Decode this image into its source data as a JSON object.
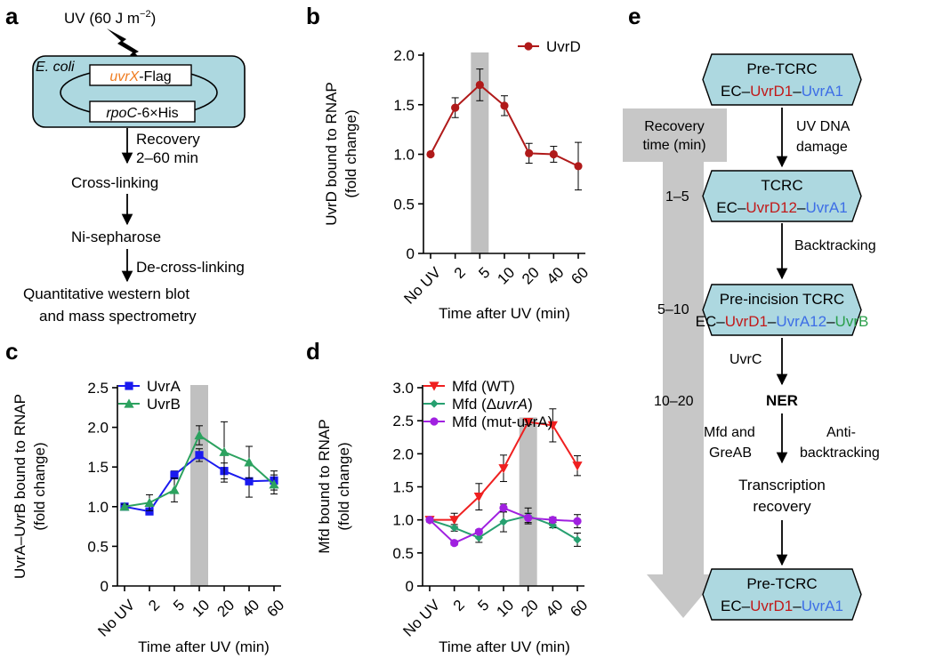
{
  "colors": {
    "box_fill": "#add8e0",
    "uvrd": "#b01a1a",
    "uvra": "#1a1aef",
    "uvrb": "#2ca25f",
    "mfd_wt": "#ef2020",
    "mfd_deltauvra": "#27a070",
    "mfd_mut": "#a020e0",
    "shade": "#c0c0c0",
    "red_text": "#c11a1a",
    "blue_text": "#3d6ee6",
    "green_text": "#2a9e4a",
    "orange_text": "#ef7d22"
  },
  "panel_a": {
    "label": "a",
    "uv_dose": "UV (60 J m",
    "uv_sup": "−2",
    "uv_close": ")",
    "strain": "E. coli",
    "plasmid1_gene": "uvrX",
    "plasmid1_tag": "-Flag",
    "plasmid2_gene": "rpoC",
    "plasmid2_tag": "-6×His",
    "step1_line1": "Recovery",
    "step1_line2": "2–60 min",
    "step2": "Cross-linking",
    "step3": "Ni-sepharose",
    "step4": "De-cross-linking",
    "final_line1": "Quantitative western blot",
    "final_line2": "and mass spectrometry"
  },
  "panel_e": {
    "label": "e",
    "recovery_line1": "Recovery",
    "recovery_line2": "time (min)",
    "boxes": [
      {
        "title": "Pre-TCRC",
        "ec": "EC–",
        "d": "UvrD1",
        "sep1": "–",
        "a": "UvrA1",
        "sep2": "",
        "b": ""
      },
      {
        "title": "TCRC",
        "ec": "EC–",
        "d": "UvrD12",
        "sep1": "–",
        "a": "UvrA1",
        "sep2": "",
        "b": ""
      },
      {
        "title": "Pre-incision TCRC",
        "ec": "EC–",
        "d": "UvrD1",
        "sep1": "–",
        "a": "UvrA12",
        "sep2": "–",
        "b": "UvrB"
      },
      {
        "title": "Pre-TCRC",
        "ec": "EC–",
        "d": "UvrD1",
        "sep1": "–",
        "a": "UvrA1",
        "sep2": "",
        "b": ""
      }
    ],
    "arrow1_line1": "UV DNA",
    "arrow1_line2": "damage",
    "arrow2": "Backtracking",
    "arrow3": "UvrC",
    "ner": "NER",
    "arrow4_left_line1": "Mfd and",
    "arrow4_left_line2": "GreAB",
    "arrow4_right_line1": "Anti-",
    "arrow4_right_line2": "backtracking",
    "recovery_label_line1": "Transcription",
    "recovery_label_line2": "recovery",
    "times": [
      "1–5",
      "5–10",
      "10–20"
    ]
  },
  "chart_data": [
    {
      "type": "line",
      "panel": "b",
      "categories": [
        "No UV",
        "2",
        "5",
        "10",
        "20",
        "40",
        "60"
      ],
      "series": [
        {
          "name": "UvrD",
          "values": [
            1.0,
            1.47,
            1.7,
            1.49,
            1.01,
            1.0,
            0.88
          ],
          "errors": [
            0,
            0.1,
            0.16,
            0.1,
            0.1,
            0.08,
            0.24
          ]
        }
      ],
      "shaded_category": "5",
      "xlabel": "Time after UV (min)",
      "ylabel_line1": "UvrD bound to RNAP",
      "ylabel_line2": "(fold change)",
      "ylim": [
        0,
        2.0
      ],
      "yticks": [
        "0",
        "0.5",
        "1.0",
        "1.5",
        "2.0"
      ],
      "legend": "top-right"
    },
    {
      "type": "line",
      "panel": "c",
      "categories": [
        "No UV",
        "2",
        "5",
        "10",
        "20",
        "40",
        "60"
      ],
      "series": [
        {
          "name": "UvrA",
          "values": [
            1.0,
            0.94,
            1.4,
            1.65,
            1.45,
            1.32,
            1.33
          ],
          "errors": [
            0.03,
            0.03,
            0.05,
            0.08,
            0.1,
            0.2,
            0.12
          ]
        },
        {
          "name": "UvrB",
          "values": [
            1.0,
            1.05,
            1.21,
            1.9,
            1.69,
            1.56,
            1.28
          ],
          "errors": [
            0.03,
            0.1,
            0.15,
            0.12,
            0.38,
            0.2,
            0.12
          ]
        }
      ],
      "shaded_category": "10",
      "xlabel": "Time after UV (min)",
      "ylabel_line1": "UvrA–UvrB bound to RNAP",
      "ylabel_line2": "(fold change)",
      "ylim": [
        0,
        2.5
      ],
      "yticks": [
        "0",
        "0.5",
        "1.0",
        "1.5",
        "2.0",
        "2.5"
      ],
      "legend": "top-left"
    },
    {
      "type": "line",
      "panel": "d",
      "categories": [
        "No UV",
        "2",
        "5",
        "10",
        "20",
        "40",
        "60"
      ],
      "series": [
        {
          "name": "Mfd (WT)",
          "values": [
            1.0,
            1.0,
            1.35,
            1.78,
            2.48,
            2.43,
            1.82
          ],
          "errors": [
            0.03,
            0.1,
            0.2,
            0.2,
            0.04,
            0.25,
            0.15
          ]
        },
        {
          "name": "Mfd (ΔuvrA)",
          "values": [
            1.0,
            0.88,
            0.73,
            0.97,
            1.06,
            0.92,
            0.7
          ],
          "errors": [
            0.03,
            0.05,
            0.07,
            0.15,
            0.12,
            0.04,
            0.1
          ]
        },
        {
          "name": "Mfd (mut-uvrA)",
          "values": [
            1.0,
            0.65,
            0.82,
            1.18,
            1.03,
            1.0,
            0.98
          ],
          "errors": [
            0.03,
            0.03,
            0.03,
            0.06,
            0.07,
            0.04,
            0.1
          ]
        }
      ],
      "shaded_category": "20",
      "xlabel": "Time after UV (min)",
      "ylabel_line1": "Mfd bound to RNAP",
      "ylabel_line2": "(fold change)",
      "ylim": [
        0,
        3.0
      ],
      "yticks": [
        "0",
        "0.5",
        "1.0",
        "1.5",
        "2.0",
        "2.5",
        "3.0"
      ],
      "legend": "top-left"
    }
  ]
}
